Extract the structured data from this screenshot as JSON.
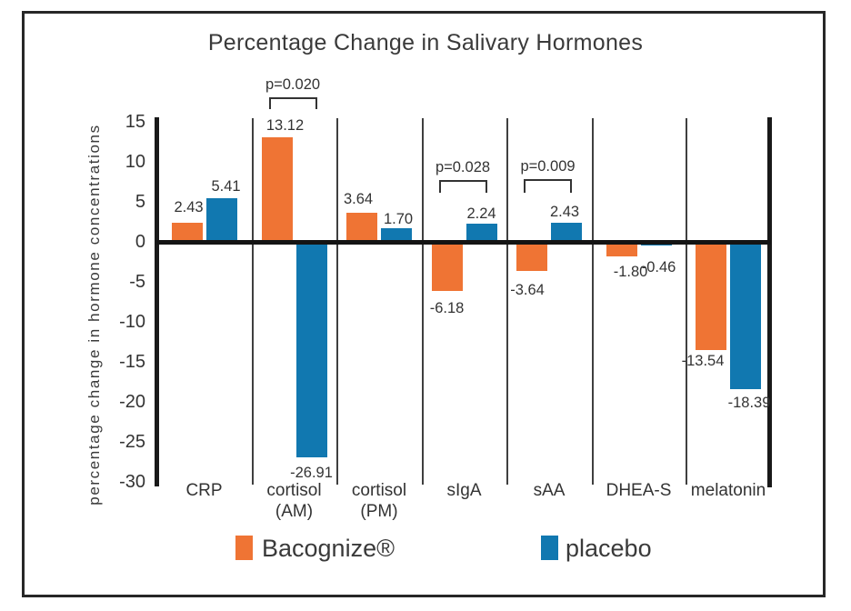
{
  "chart_data": {
    "type": "bar",
    "title": "Percentage Change in Salivary Hormones",
    "xlabel": "",
    "ylabel": "percentage change in hormone concentrations",
    "categories": [
      "CRP",
      "cortisol (AM)",
      "cortisol (PM)",
      "sIgA",
      "sAA",
      "DHEA-S",
      "melatonin"
    ],
    "category_labels": [
      [
        "CRP"
      ],
      [
        "cortisol",
        "(AM)"
      ],
      [
        "cortisol",
        "(PM)"
      ],
      [
        "sIgA"
      ],
      [
        "sAA"
      ],
      [
        "DHEA-S"
      ],
      [
        "melatonin"
      ]
    ],
    "series": [
      {
        "name": "Bacognize®",
        "color": "#EF7434",
        "values": [
          2.43,
          13.12,
          3.64,
          -6.18,
          -3.64,
          -1.8,
          -13.54
        ]
      },
      {
        "name": "placebo",
        "color": "#1178B0",
        "values": [
          5.41,
          -26.91,
          1.7,
          2.24,
          2.43,
          -0.46,
          -18.39
        ]
      }
    ],
    "yticks": [
      15,
      10,
      5,
      0,
      -5,
      -10,
      -15,
      -20,
      -25,
      -30
    ],
    "ylim": [
      -30,
      15
    ],
    "grid": "vertical-category-separators",
    "legend_position": "bottom",
    "significance": [
      {
        "label": "p=0.020",
        "category": "cortisol (AM)",
        "category_index": 1
      },
      {
        "label": "p=0.028",
        "category": "sIgA",
        "category_index": 3
      },
      {
        "label": "p=0.009",
        "category": "sAA",
        "category_index": 4
      }
    ],
    "colors": {
      "bacognize_orange": "#EF7434",
      "placebo_blue": "#1178B0",
      "axis_black": "#191919",
      "text": "#333333"
    }
  }
}
